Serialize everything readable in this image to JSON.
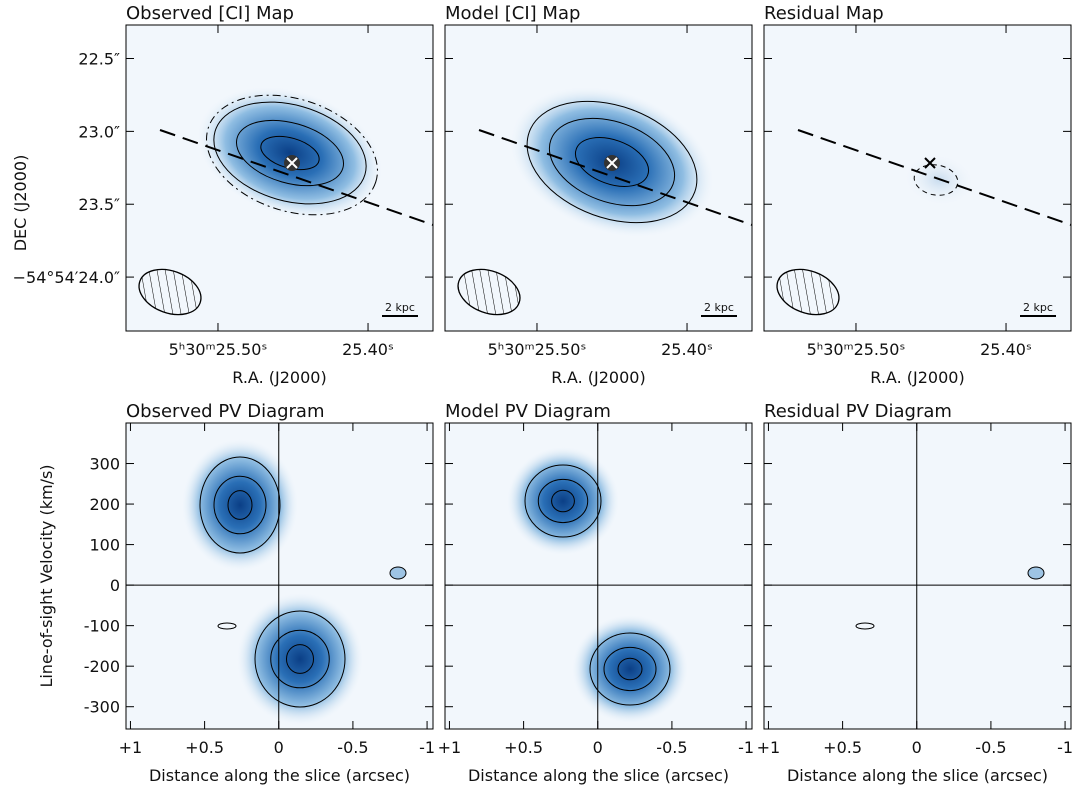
{
  "chart_data": [
    {
      "type": "map",
      "title": "Observed [CI] Map",
      "xlabel": "R.A. (J2000)",
      "ylabel": "DEC (J2000)",
      "xlim": [
        25.5613,
        25.3567
      ],
      "ylim": [
        24.37,
        22.27
      ],
      "xticks": [
        {
          "value": 25.5,
          "label": "5ʰ30ᵐ25.50ˢ"
        },
        {
          "value": 25.4,
          "label": "25.40ˢ"
        }
      ],
      "yticks": [
        {
          "value": 22.5,
          "label": "22.5″"
        },
        {
          "value": 23.0,
          "label": "23.0″"
        },
        {
          "value": 23.5,
          "label": "23.5″"
        },
        {
          "value": 24.0,
          "label": "−54°54′24.0″"
        }
      ],
      "scale_bar": "2 kpc"
    },
    {
      "type": "map",
      "title": "Model [CI] Map",
      "xlabel": "R.A. (J2000)",
      "xlim": [
        25.5613,
        25.3567
      ],
      "ylim": [
        24.37,
        22.27
      ],
      "xticks": [
        {
          "value": 25.5,
          "label": "5ʰ30ᵐ25.50ˢ"
        },
        {
          "value": 25.4,
          "label": "25.40ˢ"
        }
      ],
      "scale_bar": "2 kpc"
    },
    {
      "type": "map",
      "title": "Residual Map",
      "xlabel": "R.A. (J2000)",
      "xlim": [
        25.5613,
        25.3567
      ],
      "ylim": [
        24.37,
        22.27
      ],
      "xticks": [
        {
          "value": 25.5,
          "label": "5ʰ30ᵐ25.50ˢ"
        },
        {
          "value": 25.4,
          "label": "25.40ˢ"
        }
      ],
      "scale_bar": "2 kpc"
    },
    {
      "type": "pv",
      "title": "Observed PV Diagram",
      "xlabel": "Distance along the slice (arcsec)",
      "ylabel": "Line-of-sight Velocity (km/s)",
      "xlim": [
        1.03,
        -1.04
      ],
      "ylim": [
        -355,
        400
      ],
      "xticks": [
        {
          "value": 1,
          "label": "+1"
        },
        {
          "value": 0.5,
          "label": "+0.5"
        },
        0,
        -0.5,
        -1
      ],
      "yticks": [
        300,
        200,
        100,
        0,
        -100,
        -200,
        -300
      ]
    },
    {
      "type": "pv",
      "title": "Model PV Diagram",
      "xlabel": "Distance along the slice (arcsec)",
      "xlim": [
        1.03,
        -1.04
      ],
      "ylim": [
        -355,
        400
      ],
      "xticks": [
        {
          "value": 1,
          "label": "+1"
        },
        {
          "value": 0.5,
          "label": "+0.5"
        },
        0,
        -0.5,
        -1
      ]
    },
    {
      "type": "pv",
      "title": "Residual PV Diagram",
      "xlabel": "Distance along the slice (arcsec)",
      "xlim": [
        1.03,
        -1.04
      ],
      "ylim": [
        -355,
        400
      ],
      "xticks": [
        {
          "value": 1,
          "label": "+1"
        },
        {
          "value": 0.5,
          "label": "+0.5"
        },
        0,
        -0.5,
        -1
      ]
    }
  ]
}
